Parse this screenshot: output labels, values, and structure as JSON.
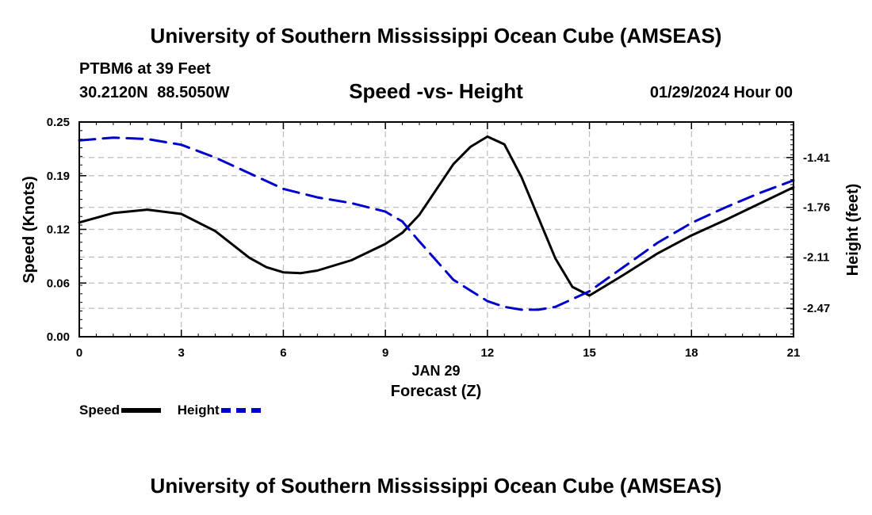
{
  "header": {
    "title": "University of Southern Mississippi Ocean Cube (AMSEAS)",
    "station": "PTBM6 at 39 Feet",
    "coords": "30.2120N  88.5050W",
    "subtitle": "Speed -vs- Height",
    "timestamp": "01/29/2024 Hour 00"
  },
  "footer": {
    "title": "University of Southern Mississippi Ocean Cube (AMSEAS)"
  },
  "legend": {
    "speed_label": "Speed",
    "height_label": "Height"
  },
  "colors": {
    "speed": "#000000",
    "height": "#0000cc",
    "grid": "#bbbbbb"
  },
  "chart_data": {
    "type": "line",
    "title": "Speed -vs- Height",
    "xlabel": "Forecast (Z)",
    "xlabel_date": "JAN 29",
    "ylabel": "Speed (Knots)",
    "y2label": "Height (feet)",
    "xlim": [
      0,
      21
    ],
    "ylim": [
      0,
      0.25
    ],
    "y2lim": [
      -2.67,
      -1.16
    ],
    "x_ticks": [
      "0",
      "3",
      "6",
      "9",
      "12",
      "15",
      "18",
      "21"
    ],
    "y_ticks": [
      "0.00",
      "0.06",
      "0.12",
      "0.19",
      "0.25"
    ],
    "y_tick_values": [
      0,
      0.0625,
      0.125,
      0.1875,
      0.25
    ],
    "y2_ticks": [
      "-1.41",
      "-1.76",
      "-2.11",
      "-2.47"
    ],
    "y2_tick_values": [
      -1.41,
      -1.76,
      -2.11,
      -2.47
    ],
    "grid": true,
    "series": [
      {
        "name": "Speed",
        "axis": "left",
        "style": "solid",
        "x": [
          0,
          1,
          2,
          3,
          4,
          5,
          5.5,
          6,
          6.5,
          7,
          8,
          9,
          9.5,
          10,
          11,
          11.5,
          12,
          12.5,
          13,
          14,
          14.5,
          15,
          16,
          17,
          18,
          19,
          20,
          21
        ],
        "y": [
          0.133,
          0.144,
          0.148,
          0.143,
          0.123,
          0.092,
          0.081,
          0.075,
          0.074,
          0.077,
          0.089,
          0.108,
          0.121,
          0.142,
          0.201,
          0.221,
          0.233,
          0.224,
          0.186,
          0.091,
          0.058,
          0.048,
          0.072,
          0.097,
          0.118,
          0.136,
          0.155,
          0.174
        ]
      },
      {
        "name": "Height",
        "axis": "right",
        "style": "dashed",
        "x": [
          0,
          1,
          2,
          3,
          4,
          5,
          6,
          7,
          8,
          9,
          9.5,
          10,
          11,
          12,
          12.5,
          13,
          13.5,
          14,
          15,
          16,
          17,
          18,
          19,
          20,
          21
        ],
        "y": [
          -1.29,
          -1.27,
          -1.28,
          -1.32,
          -1.41,
          -1.52,
          -1.63,
          -1.69,
          -1.73,
          -1.79,
          -1.86,
          -2.0,
          -2.27,
          -2.42,
          -2.46,
          -2.48,
          -2.48,
          -2.46,
          -2.35,
          -2.18,
          -2.01,
          -1.87,
          -1.76,
          -1.66,
          -1.57
        ]
      }
    ]
  }
}
